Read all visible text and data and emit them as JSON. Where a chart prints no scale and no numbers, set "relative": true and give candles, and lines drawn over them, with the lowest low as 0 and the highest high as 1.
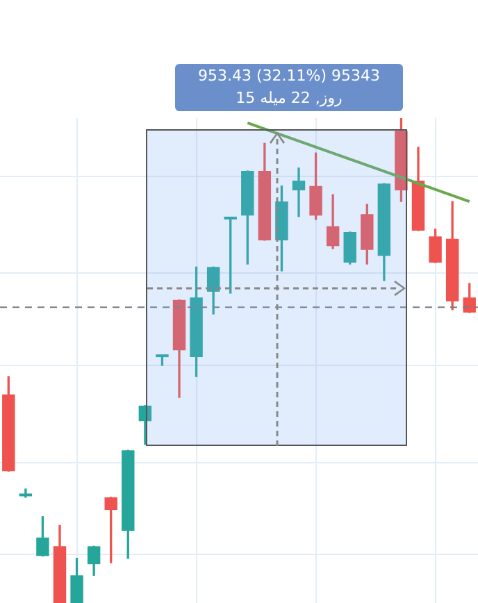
{
  "chart_data": {
    "type": "candlestick",
    "relative": true,
    "grid": true,
    "categories": [
      null,
      null,
      null,
      null,
      null,
      null,
      null,
      null,
      null,
      null,
      null,
      null,
      null,
      null,
      null,
      null,
      null,
      null,
      null,
      null,
      null,
      null,
      null,
      null,
      null,
      null,
      null,
      null
    ],
    "ohlc": [
      [
        0.43,
        0.467,
        0.272,
        0.272
      ],
      [
        0.22,
        0.235,
        0.218,
        0.223
      ],
      [
        0.097,
        0.178,
        0.097,
        0.135
      ],
      [
        0.117,
        0.16,
        0,
        0
      ],
      [
        0,
        0.092,
        0,
        0.057
      ],
      [
        0.08,
        0.117,
        0.057,
        0.117
      ],
      [
        0.218,
        0.218,
        0.083,
        0.192
      ],
      [
        0.149,
        0.315,
        0.092,
        0.315
      ],
      [
        0.375,
        0.407,
        0.327,
        0.407
      ],
      [
        0.507,
        0.51,
        0.49,
        0.51
      ],
      [
        0.625,
        0.625,
        0.424,
        0.521
      ],
      [
        0.507,
        0.693,
        0.467,
        0.63
      ],
      [
        0.642,
        0.693,
        0.596,
        0.693
      ],
      [
        0.791,
        0.794,
        0.639,
        0.794
      ],
      [
        0.799,
        0.891,
        0.699,
        0.891
      ],
      [
        0.891,
        0.948,
        0.748,
        0.748
      ],
      [
        0.748,
        0.86,
        0.685,
        0.828
      ],
      [
        0.851,
        0.897,
        0.797,
        0.871
      ],
      [
        0.86,
        0.928,
        0.791,
        0.799
      ],
      [
        0.777,
        0.842,
        0.731,
        0.736
      ],
      [
        0.702,
        0.765,
        0.699,
        0.765
      ],
      [
        0.802,
        0.822,
        0.699,
        0.728
      ],
      [
        0.716,
        0.865,
        0.665,
        0.865
      ],
      [
        0.974,
        1,
        0.828,
        0.851
      ],
      [
        0.871,
        0.94,
        0.768,
        0.768
      ],
      [
        0.756,
        0.771,
        0.702,
        0.702
      ],
      [
        0.751,
        0.828,
        0.605,
        0.622
      ],
      [
        0.63,
        0.659,
        0.599,
        0.599
      ]
    ],
    "colors": [
      "#ef5350",
      "#26a69a",
      "#26a69a",
      "#ef5350",
      "#26a69a",
      "#26a69a",
      "#ef5350",
      "#26a69a",
      "#26a69a",
      "#26a69a",
      "#ef5350",
      "#26a69a",
      "#26a69a",
      "#26a69a",
      "#26a69a",
      "#ef5350",
      "#26a69a",
      "#26a69a",
      "#ef5350",
      "#ef5350",
      "#26a69a",
      "#ef5350",
      "#26a69a",
      "#ef5350",
      "#ef5350",
      "#ef5350",
      "#ef5350",
      "#ef5350"
    ],
    "series": [
      {
        "type": "line",
        "color": "#6aa84f",
        "values": [
          null,
          null,
          null,
          null,
          null,
          null,
          null,
          null,
          null,
          null,
          null,
          null,
          null,
          null,
          0.99,
          null,
          null,
          null,
          null,
          null,
          null,
          null,
          null,
          null,
          null,
          null,
          null,
          0.828
        ]
      }
    ],
    "ref_lines": [
      {
        "axis": "y",
        "value": 0.61,
        "color": "#787b86",
        "line_style": "dashed"
      }
    ],
    "annotations": [
      "953.43 (32.11%) 95343",
      "15 روز, 22 میله"
    ]
  }
}
